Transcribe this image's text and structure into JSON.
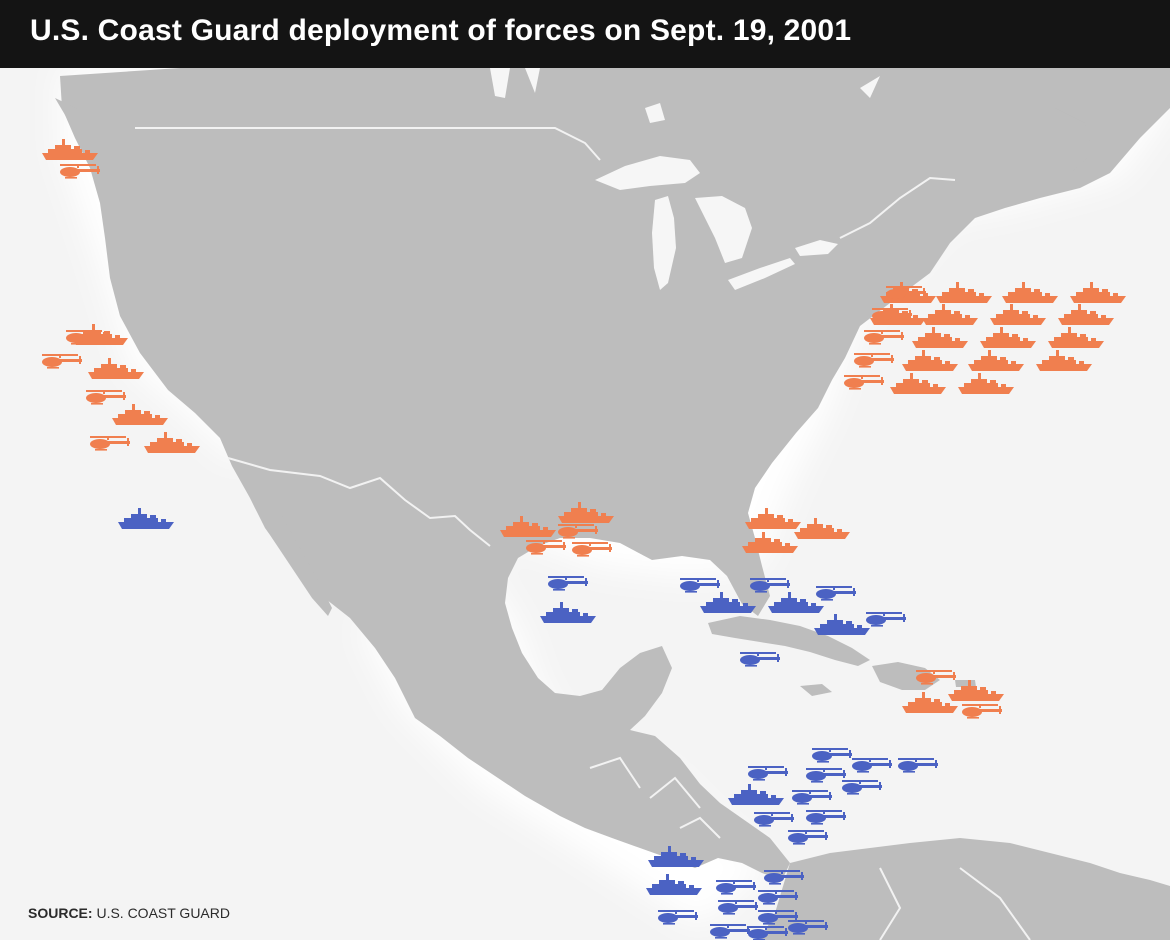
{
  "title": "U.S. Coast Guard deployment of forces on Sept. 19, 2001",
  "source": {
    "label": "SOURCE:",
    "text": "U.S. COAST GUARD"
  },
  "colors": {
    "title_bg": "#141414",
    "ocean": "#f4f4f4",
    "land": "#bdbdbd",
    "borders": "#f2f2f2",
    "group_orange": "#f07f4f",
    "group_blue": "#4b62c3"
  },
  "icons": {
    "cutter": "ship-icon",
    "helicopter": "helicopter-icon"
  },
  "deployments": [
    {
      "area": "pacific-northwest",
      "color": "orange",
      "cutters": 1,
      "helicopters": 1
    },
    {
      "area": "pacific-california",
      "color": "orange",
      "cutters": 4,
      "helicopters": 4
    },
    {
      "area": "eastern-pacific",
      "color": "blue",
      "cutters": 1,
      "helicopters": 0
    },
    {
      "area": "atlantic-east-coast",
      "color": "orange",
      "cutters": 16,
      "helicopters": 5
    },
    {
      "area": "gulf-of-mexico-texas",
      "color": "orange",
      "cutters": 2,
      "helicopters": 3
    },
    {
      "area": "florida",
      "color": "orange",
      "cutters": 3,
      "helicopters": 0
    },
    {
      "area": "gulf-of-mexico-central",
      "color": "blue",
      "cutters": 1,
      "helicopters": 1
    },
    {
      "area": "florida-straits-bahamas",
      "color": "blue",
      "cutters": 3,
      "helicopters": 5
    },
    {
      "area": "puerto-rico",
      "color": "orange",
      "cutters": 2,
      "helicopters": 2
    },
    {
      "area": "western-caribbean",
      "color": "blue",
      "cutters": 1,
      "helicopters": 10
    },
    {
      "area": "central-america-pacific",
      "color": "blue",
      "cutters": 2,
      "helicopters": 9
    }
  ]
}
